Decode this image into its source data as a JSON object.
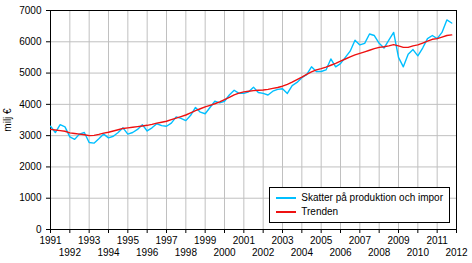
{
  "chart_data": {
    "type": "line",
    "ylabel": "milj €",
    "x": [
      1991,
      1991.25,
      1991.5,
      1991.75,
      1992,
      1992.25,
      1992.5,
      1992.75,
      1993,
      1993.25,
      1993.5,
      1993.75,
      1994,
      1994.25,
      1994.5,
      1994.75,
      1995,
      1995.25,
      1995.5,
      1995.75,
      1996,
      1996.25,
      1996.5,
      1996.75,
      1997,
      1997.25,
      1997.5,
      1997.75,
      1998,
      1998.25,
      1998.5,
      1998.75,
      1999,
      1999.25,
      1999.5,
      1999.75,
      2000,
      2000.25,
      2000.5,
      2000.75,
      2001,
      2001.25,
      2001.5,
      2001.75,
      2002,
      2002.25,
      2002.5,
      2002.75,
      2003,
      2003.25,
      2003.5,
      2003.75,
      2004,
      2004.25,
      2004.5,
      2004.75,
      2005,
      2005.25,
      2005.5,
      2005.75,
      2006,
      2006.25,
      2006.5,
      2006.75,
      2007,
      2007.25,
      2007.5,
      2007.75,
      2008,
      2008.25,
      2008.5,
      2008.75,
      2009,
      2009.25,
      2009.5,
      2009.75,
      2010,
      2010.25,
      2010.5,
      2010.75,
      2011,
      2011.25,
      2011.5,
      2011.75
    ],
    "series": [
      {
        "name": "Skatter på produktion och impor",
        "color": "#00BFFF",
        "values": [
          3300,
          3100,
          3350,
          3280,
          2960,
          2880,
          3050,
          3100,
          2780,
          2760,
          2900,
          3050,
          2930,
          2980,
          3100,
          3250,
          3050,
          3100,
          3200,
          3350,
          3150,
          3250,
          3380,
          3320,
          3300,
          3400,
          3600,
          3550,
          3480,
          3650,
          3900,
          3750,
          3700,
          3900,
          4100,
          4050,
          4100,
          4300,
          4450,
          4350,
          4350,
          4400,
          4550,
          4380,
          4350,
          4300,
          4420,
          4480,
          4500,
          4350,
          4600,
          4700,
          4850,
          4950,
          5200,
          5050,
          5050,
          5100,
          5450,
          5200,
          5300,
          5500,
          5700,
          6050,
          5900,
          5950,
          6250,
          6200,
          5950,
          5800,
          6050,
          6300,
          5500,
          5200,
          5600,
          5750,
          5550,
          5800,
          6100,
          6200,
          6100,
          6300,
          6700,
          6600
        ]
      },
      {
        "name": "Trenden",
        "color": "#EE1111",
        "values": [
          3200,
          3180,
          3160,
          3140,
          3090,
          3070,
          3050,
          3030,
          3000,
          3010,
          3040,
          3080,
          3110,
          3150,
          3190,
          3230,
          3250,
          3270,
          3290,
          3310,
          3330,
          3360,
          3400,
          3430,
          3460,
          3510,
          3560,
          3610,
          3660,
          3730,
          3800,
          3860,
          3920,
          3970,
          4020,
          4080,
          4150,
          4220,
          4300,
          4360,
          4400,
          4420,
          4440,
          4450,
          4460,
          4480,
          4510,
          4540,
          4580,
          4640,
          4710,
          4790,
          4870,
          4960,
          5040,
          5100,
          5140,
          5190,
          5250,
          5310,
          5380,
          5450,
          5520,
          5580,
          5630,
          5680,
          5730,
          5780,
          5820,
          5840,
          5870,
          5910,
          5870,
          5820,
          5820,
          5870,
          5900,
          5960,
          6020,
          6080,
          6100,
          6150,
          6200,
          6220
        ]
      }
    ],
    "xlim": [
      1991,
      2012
    ],
    "xticks": [
      1991,
      1992,
      1993,
      1994,
      1995,
      1996,
      1997,
      1998,
      1999,
      2000,
      2001,
      2002,
      2003,
      2004,
      2005,
      2006,
      2007,
      2008,
      2009,
      2010,
      2011,
      2012
    ],
    "ylim": [
      0,
      7000
    ],
    "yticks": [
      0,
      1000,
      2000,
      3000,
      4000,
      5000,
      6000,
      7000
    ],
    "grid": true,
    "legend": "lower right"
  }
}
